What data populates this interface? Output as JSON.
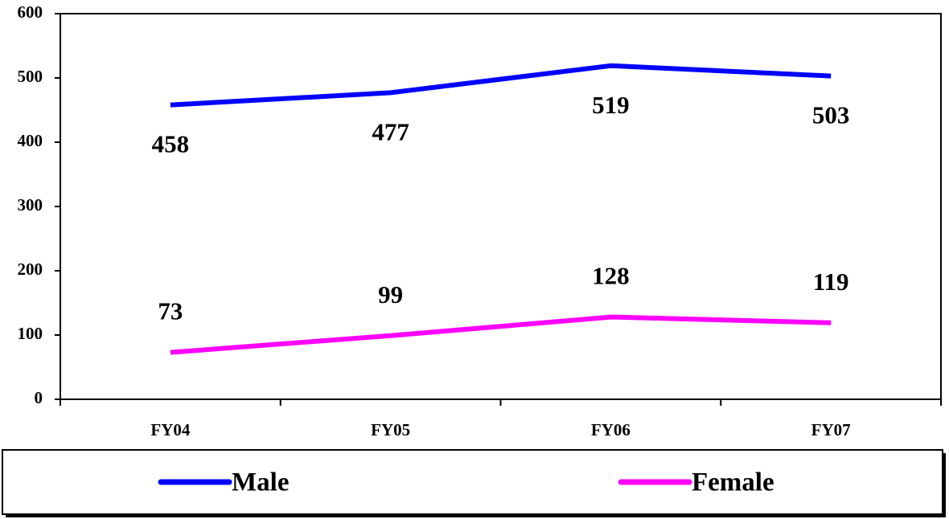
{
  "chart_data": {
    "type": "line",
    "categories": [
      "FY04",
      "FY05",
      "FY06",
      "FY07"
    ],
    "series": [
      {
        "name": "Male",
        "color": "#0000ff",
        "values": [
          458,
          477,
          519,
          503
        ]
      },
      {
        "name": "Female",
        "color": "#ff00ff",
        "values": [
          73,
          99,
          128,
          119
        ]
      }
    ],
    "ylim": [
      0,
      600
    ],
    "yticks": [
      0,
      100,
      200,
      300,
      400,
      500,
      600
    ],
    "legend": "bottom",
    "grid": false
  }
}
